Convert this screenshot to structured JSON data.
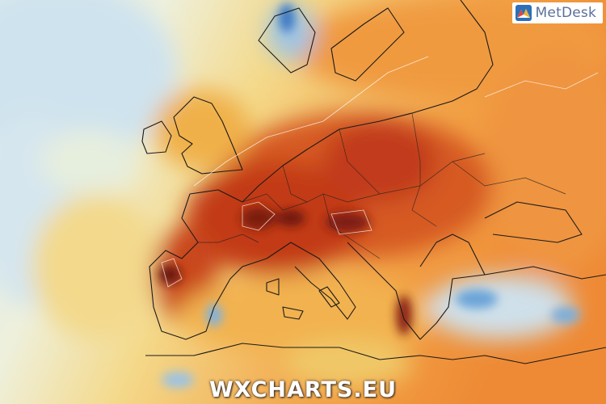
{
  "logo": {
    "text": "MetDesk"
  },
  "watermark": {
    "text": "WXCHARTS.EU"
  }
}
